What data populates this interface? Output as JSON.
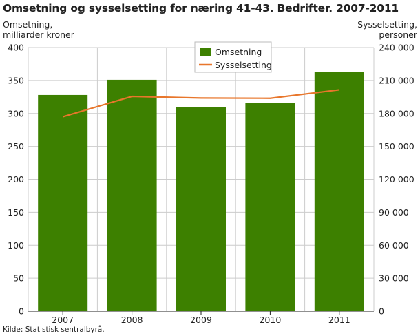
{
  "title": "Omsetning og sysselsetting for næring 41-43. Bedrifter. 2007-2011",
  "source": "Kilde: Statistisk sentralbyrå.",
  "colors": {
    "bar": "#3d8000",
    "line": "#e8762b",
    "grid": "#cccccc",
    "axis": "#222222"
  },
  "chart_data": {
    "type": "bar+line",
    "title": "Omsetning og sysselsetting for næring 41-43. Bedrifter. 2007-2011",
    "categories": [
      "2007",
      "2008",
      "2009",
      "2010",
      "2011"
    ],
    "ylabel_left": [
      "Omsetning,",
      "milliarder kroner"
    ],
    "ylabel_right": [
      "Sysselsetting,",
      "personer"
    ],
    "ylim_left": [
      0,
      400
    ],
    "ylim_right": [
      0,
      240000
    ],
    "yticks_left": [
      "0",
      "50",
      "100",
      "150",
      "200",
      "250",
      "300",
      "350",
      "400"
    ],
    "yticks_right": [
      "0",
      "30 000",
      "60 000",
      "90 000",
      "120 000",
      "150 000",
      "180 000",
      "210 000",
      "240 000"
    ],
    "grid": true,
    "legend_position": "top-center",
    "series": [
      {
        "name": "Omsetning",
        "type": "bar",
        "axis": "left",
        "values": [
          328,
          351,
          310,
          316,
          363
        ]
      },
      {
        "name": "Sysselsetting",
        "type": "line",
        "axis": "right",
        "values": [
          177000,
          195500,
          194000,
          193800,
          201500
        ]
      }
    ]
  }
}
